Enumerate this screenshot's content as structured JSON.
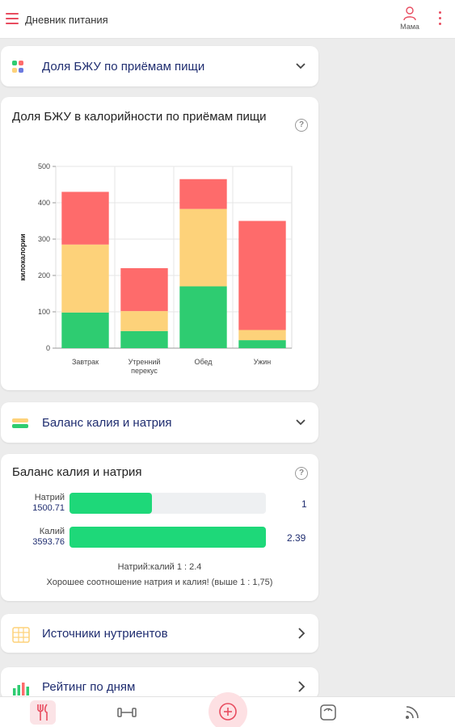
{
  "app": {
    "title": "Дневник питания",
    "user": "Мама"
  },
  "colors": {
    "accent": "#e84c5f",
    "protein": "#2ecc71",
    "fat": "#fdd27a",
    "carbs": "#fe6b6b",
    "link": "#1f2d70",
    "bar_fill": "#1ed879"
  },
  "sections": {
    "bju_collapse": {
      "label": "Доля БЖУ по приёмам пищи",
      "icon": "macro-blocks-icon"
    },
    "bju_chart_card": {
      "title": "Доля БЖУ в калорийности по приёмам пищи"
    },
    "balance_collapse": {
      "label": "Баланс калия и натрия",
      "icon": "balance-stripes-icon"
    },
    "balance_card": {
      "title": "Баланс калия и натрия",
      "sodium": {
        "label": "Натрий",
        "value": "1500.71",
        "ratio": "1",
        "fill": 0.42
      },
      "potassium": {
        "label": "Калий",
        "value": "3593.76",
        "ratio": "2.39",
        "fill": 1.0
      },
      "ratio_text": "Натрий:калий 1 : 2.4",
      "comment": "Хорошее соотношение натрия и калия! (выше 1 : 1,75)"
    },
    "sources_row": {
      "label": "Источники нутриентов",
      "icon": "table-grid-icon"
    },
    "rating_row": {
      "label": "Рейтинг по дням",
      "icon": "bar-chart-icon"
    }
  },
  "chart_data": {
    "type": "bar",
    "stacked": true,
    "categories": [
      "Завтрак",
      "Утренний перекус",
      "Обед",
      "Ужин"
    ],
    "category_lines": [
      [
        "Завтрак"
      ],
      [
        "Утренний",
        "перекус"
      ],
      [
        "Обед"
      ],
      [
        "Ужин"
      ]
    ],
    "series": [
      {
        "values": [
          98,
          47,
          170,
          22
        ],
        "color": "#2ecc71"
      },
      {
        "values": [
          187,
          55,
          213,
          28
        ],
        "color": "#fdd27a"
      },
      {
        "values": [
          145,
          118,
          82,
          300
        ],
        "color": "#fe6b6b"
      }
    ],
    "ylabel": "килокалории",
    "ylim": [
      0,
      500
    ],
    "yticks": [
      0,
      100,
      200,
      300,
      400,
      500
    ],
    "grid": true
  },
  "bottom_nav": [
    {
      "name": "diary",
      "icon": "fork-knife-icon",
      "active": true
    },
    {
      "name": "workout",
      "icon": "dumbbell-icon",
      "active": false
    },
    {
      "name": "add",
      "icon": "plus-circle-icon",
      "active": false
    },
    {
      "name": "scale",
      "icon": "scale-icon",
      "active": false
    },
    {
      "name": "feed",
      "icon": "rss-icon",
      "active": false
    }
  ]
}
